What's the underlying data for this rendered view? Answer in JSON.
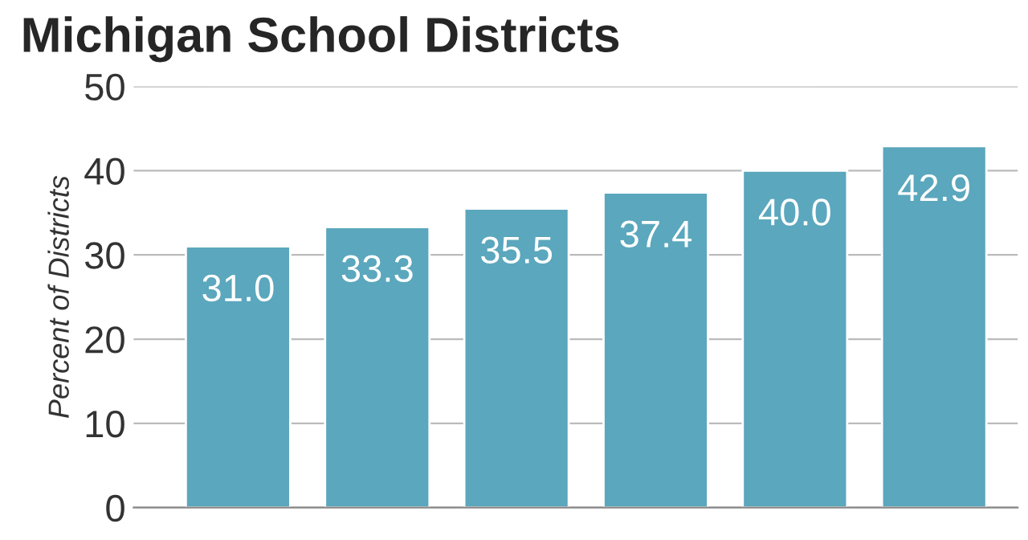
{
  "chart_data": {
    "type": "bar",
    "title": "Michigan School Districts",
    "ylabel": "Percent of Districts",
    "categories": [
      null,
      null,
      null,
      null,
      null,
      null
    ],
    "values": [
      31.0,
      33.3,
      35.5,
      37.4,
      40.0,
      42.9
    ],
    "color": "#5ba7bd",
    "ylim": [
      0,
      50
    ],
    "yticks": [
      0,
      10,
      20,
      30,
      40,
      50
    ],
    "grid": "y",
    "value_labels": [
      "31.0",
      "33.3",
      "35.5",
      "37.4",
      "40.0",
      "42.9"
    ]
  }
}
